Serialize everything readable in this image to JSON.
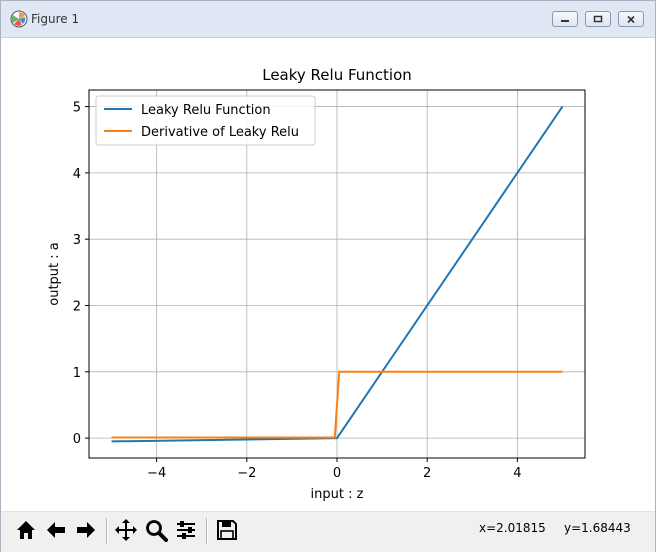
{
  "window": {
    "title": "Figure 1"
  },
  "chart_data": {
    "type": "line",
    "title": "Leaky Relu Function",
    "xlabel": "input : z",
    "ylabel": "output : a",
    "xlim": [
      -5.5,
      5.5
    ],
    "ylim": [
      -0.3,
      5.25
    ],
    "grid": true,
    "legend": "top-left",
    "x_ticks": [
      -4,
      -2,
      0,
      2,
      4
    ],
    "y_ticks": [
      0,
      1,
      2,
      3,
      4,
      5
    ],
    "x_tick_labels": [
      "−4",
      "−2",
      "0",
      "2",
      "4"
    ],
    "y_tick_labels": [
      "0",
      "1",
      "2",
      "3",
      "4",
      "5"
    ],
    "series": [
      {
        "name": "Leaky Relu Function",
        "color": "#1f77b4",
        "x": [
          -5,
          0,
          5
        ],
        "y": [
          -0.05,
          0,
          5
        ]
      },
      {
        "name": "Derivative of Leaky Relu",
        "color": "#ff7f0e",
        "x": [
          -5,
          -0.05,
          0.05,
          5
        ],
        "y": [
          0.01,
          0.01,
          1,
          1
        ]
      }
    ]
  },
  "toolbar": {
    "icons": [
      "home-icon",
      "back-arrow-icon",
      "forward-arrow-icon",
      "pan-icon",
      "zoom-icon",
      "subplots-icon",
      "save-icon"
    ]
  },
  "status": {
    "x_readout": "x=2.01815",
    "y_readout": "y=1.68443"
  }
}
